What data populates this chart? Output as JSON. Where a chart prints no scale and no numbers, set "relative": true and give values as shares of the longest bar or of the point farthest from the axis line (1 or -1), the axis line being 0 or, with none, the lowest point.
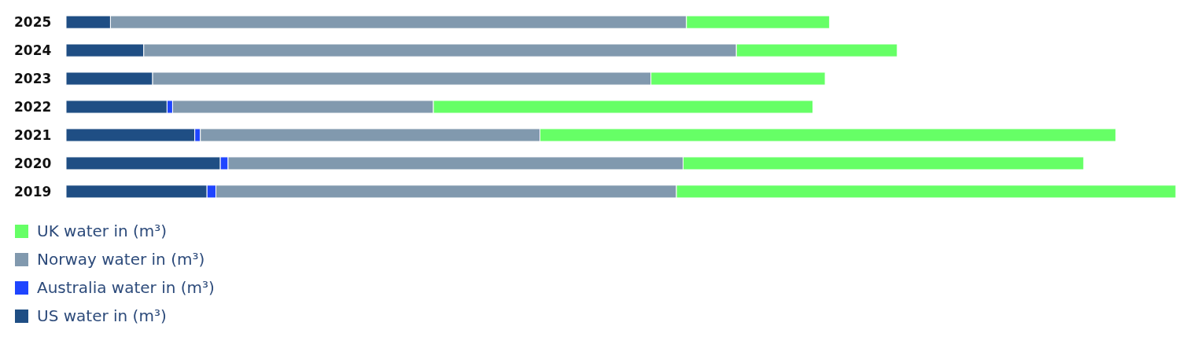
{
  "chart_data": {
    "type": "bar",
    "orientation": "horizontal",
    "stacked": true,
    "relative": true,
    "legend": "bottom",
    "categories": [
      "2025",
      "2024",
      "2023",
      "2022",
      "2021",
      "2020",
      "2019"
    ],
    "series": [
      {
        "name": "US water in (m³)",
        "color": "#1f4e84",
        "values": [
          0.04,
          0.07,
          0.078,
          0.091,
          0.116,
          0.139,
          0.127
        ]
      },
      {
        "name": "Australia water in (m³)",
        "color": "#1f45ff",
        "values": [
          0,
          0,
          0,
          0.005,
          0.005,
          0.007,
          0.008
        ]
      },
      {
        "name": "Norway water in (m³)",
        "color": "#8199ae",
        "values": [
          0.519,
          0.534,
          0.449,
          0.235,
          0.306,
          0.41,
          0.415
        ]
      },
      {
        "name": "UK water in (m³)",
        "color": "#66ff66",
        "values": [
          0.129,
          0.145,
          0.157,
          0.342,
          0.519,
          0.361,
          0.45
        ]
      }
    ]
  }
}
